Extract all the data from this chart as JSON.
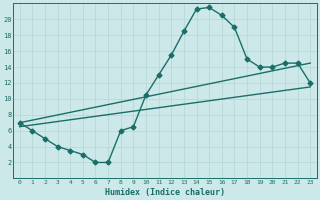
{
  "xlabel": "Humidex (Indice chaleur)",
  "bg_color": "#cce8e8",
  "grid_color": "#b8d8d8",
  "line_color": "#1a6e6a",
  "xlim": [
    -0.5,
    23.5
  ],
  "ylim": [
    0,
    22
  ],
  "xticks": [
    0,
    1,
    2,
    3,
    4,
    5,
    6,
    7,
    8,
    9,
    10,
    11,
    12,
    13,
    14,
    15,
    16,
    17,
    18,
    19,
    20,
    21,
    22,
    23
  ],
  "yticks": [
    2,
    4,
    6,
    8,
    10,
    12,
    14,
    16,
    18,
    20
  ],
  "line1_x": [
    0,
    1,
    2,
    3,
    4,
    5,
    6,
    7,
    8,
    9,
    10,
    11,
    12,
    13,
    14,
    15,
    16,
    17,
    18,
    19,
    20,
    21,
    22,
    23
  ],
  "line1_y": [
    7,
    6,
    5,
    4,
    3.5,
    3,
    2,
    2,
    6,
    6.5,
    10.5,
    13,
    15.5,
    18.5,
    21.3,
    21.5,
    20.5,
    19,
    15,
    14,
    14,
    14.5,
    14.5,
    12
  ],
  "line2_x": [
    0,
    23
  ],
  "line2_y": [
    6.5,
    11.5
  ],
  "line3_x": [
    0,
    23
  ],
  "line3_y": [
    7,
    14.5
  ],
  "marker_size": 2.5,
  "line_width": 1.0
}
